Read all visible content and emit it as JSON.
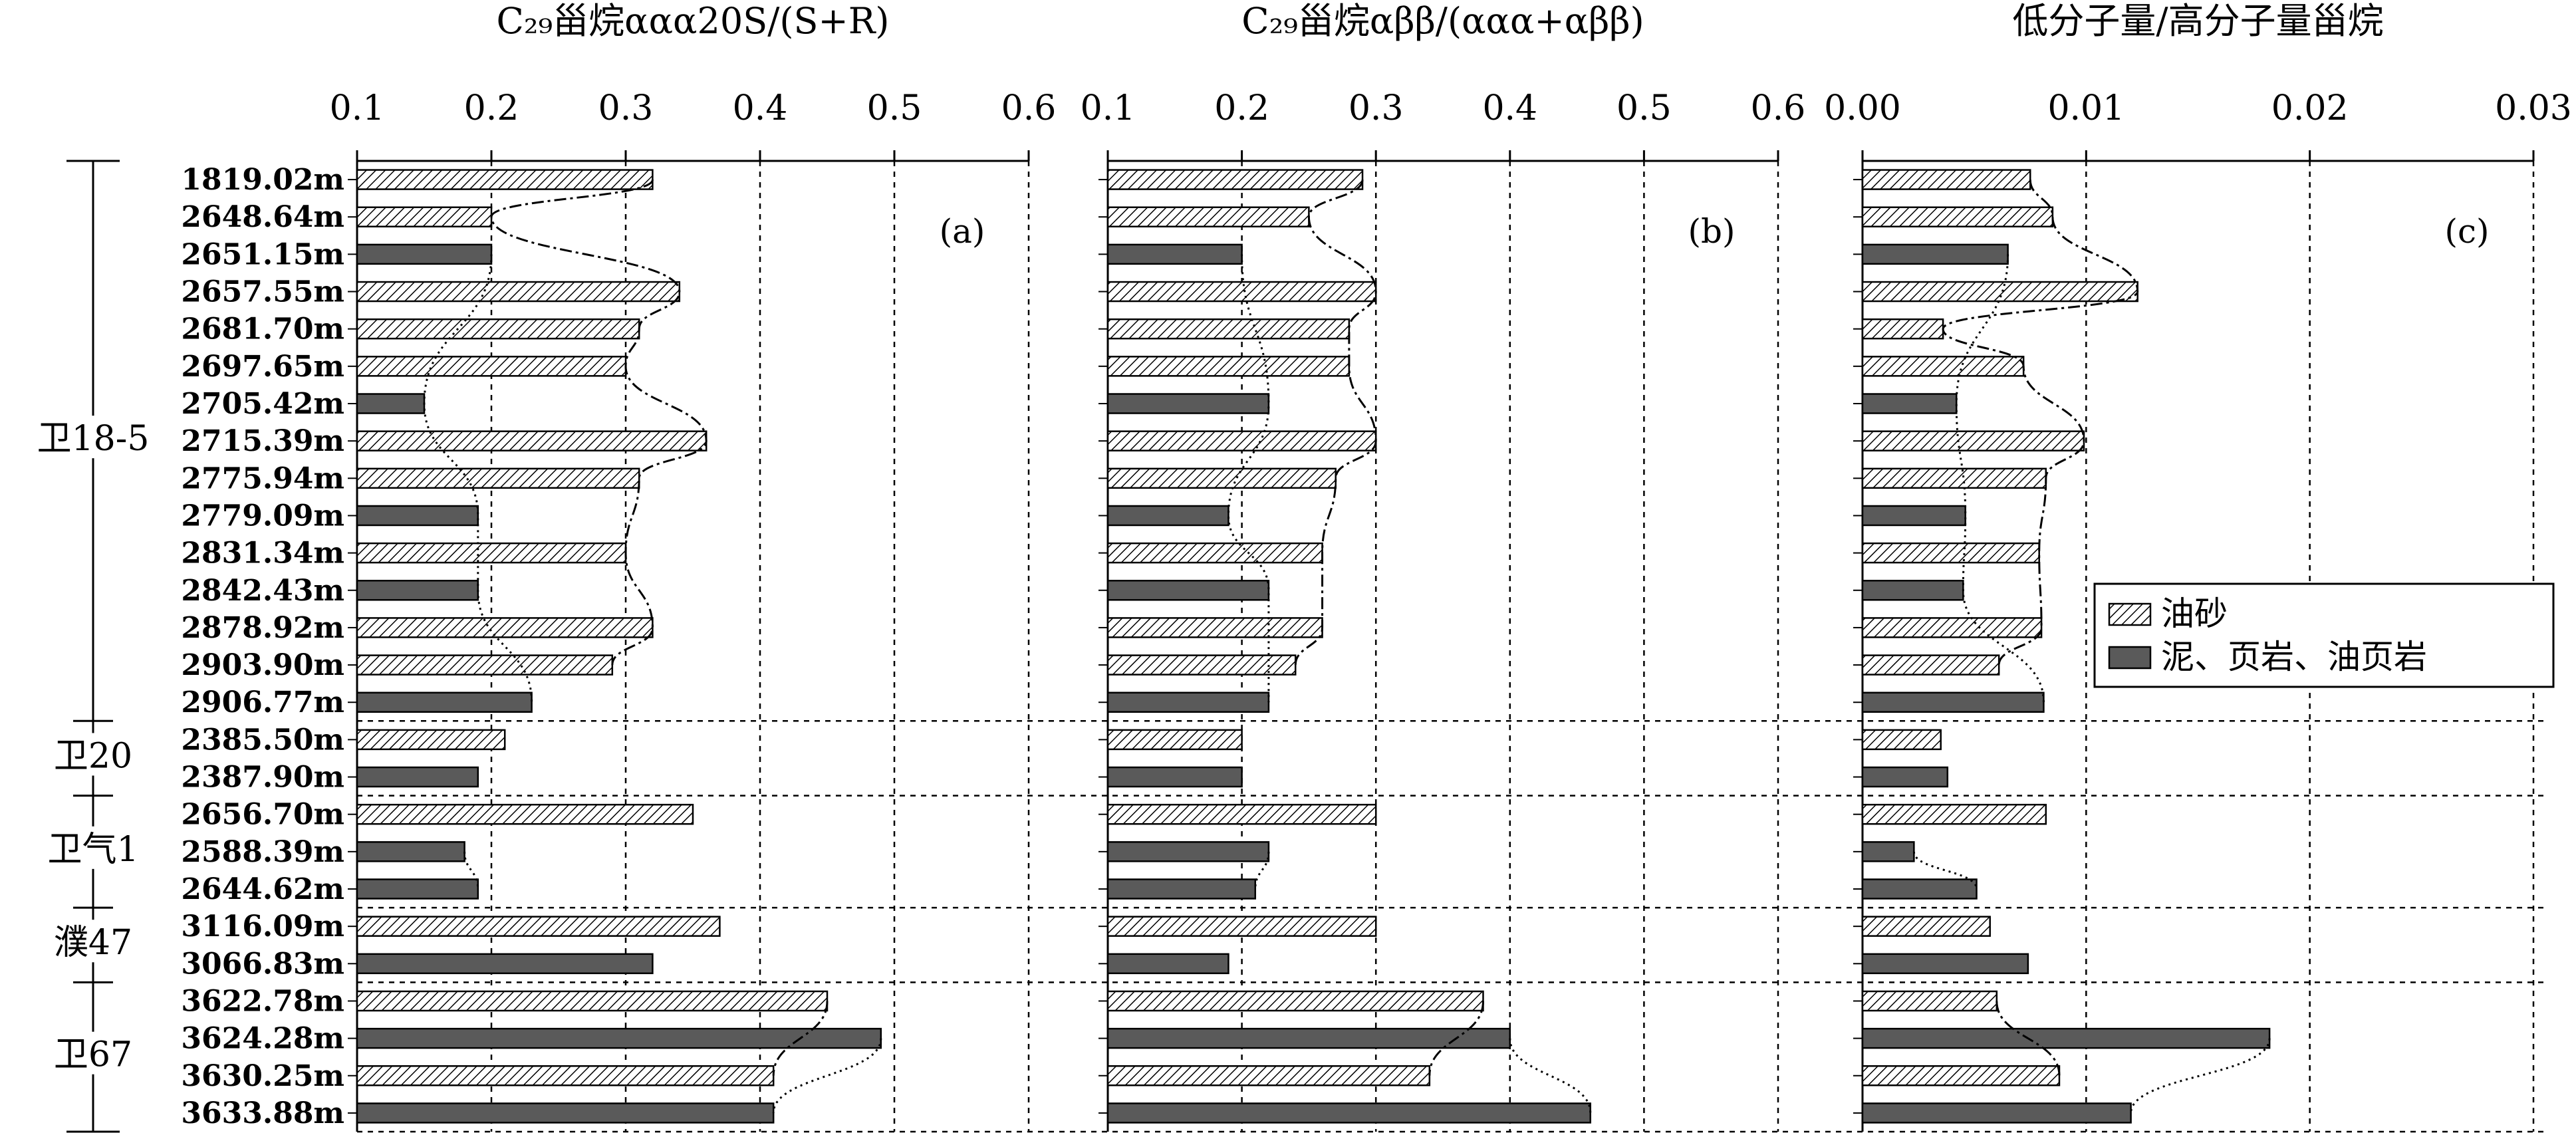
{
  "chart_data": [
    {
      "type": "bar",
      "panel_label": "(a)",
      "title": "C₂₉甾烷ααα20S/(S+R)",
      "xlim": [
        0.1,
        0.6
      ],
      "ticks": [
        "0.1",
        "0.2",
        "0.3",
        "0.4",
        "0.5",
        "0.6"
      ],
      "series_key": "ratio_20s"
    },
    {
      "type": "bar",
      "panel_label": "(b)",
      "title": "C₂₉甾烷αββ/(ααα+αββ)",
      "xlim": [
        0.1,
        0.6
      ],
      "ticks": [
        "0.1",
        "0.2",
        "0.3",
        "0.4",
        "0.5",
        "0.6"
      ],
      "series_key": "ratio_abb"
    },
    {
      "type": "bar",
      "panel_label": "(c)",
      "title": "低分子量/高分子量甾烷",
      "xlim": [
        0.0,
        0.03
      ],
      "ticks": [
        "0.00",
        "0.01",
        "0.02",
        "0.03"
      ],
      "series_key": "low_high_ratio"
    }
  ],
  "samples": [
    {
      "depth": "1819.02m",
      "lith": "oil_sand",
      "ratio_20s": 0.32,
      "ratio_abb": 0.29,
      "low_high_ratio": 0.0075
    },
    {
      "depth": "2648.64m",
      "lith": "oil_sand",
      "ratio_20s": 0.2,
      "ratio_abb": 0.25,
      "low_high_ratio": 0.0085
    },
    {
      "depth": "2651.15m",
      "lith": "mud",
      "ratio_20s": 0.2,
      "ratio_abb": 0.2,
      "low_high_ratio": 0.0065
    },
    {
      "depth": "2657.55m",
      "lith": "oil_sand",
      "ratio_20s": 0.34,
      "ratio_abb": 0.3,
      "low_high_ratio": 0.0123
    },
    {
      "depth": "2681.70m",
      "lith": "oil_sand",
      "ratio_20s": 0.31,
      "ratio_abb": 0.28,
      "low_high_ratio": 0.0036
    },
    {
      "depth": "2697.65m",
      "lith": "oil_sand",
      "ratio_20s": 0.3,
      "ratio_abb": 0.28,
      "low_high_ratio": 0.0072
    },
    {
      "depth": "2705.42m",
      "lith": "mud",
      "ratio_20s": 0.15,
      "ratio_abb": 0.22,
      "low_high_ratio": 0.0042
    },
    {
      "depth": "2715.39m",
      "lith": "oil_sand",
      "ratio_20s": 0.36,
      "ratio_abb": 0.3,
      "low_high_ratio": 0.0099
    },
    {
      "depth": "2775.94m",
      "lith": "oil_sand",
      "ratio_20s": 0.31,
      "ratio_abb": 0.27,
      "low_high_ratio": 0.0082
    },
    {
      "depth": "2779.09m",
      "lith": "mud",
      "ratio_20s": 0.19,
      "ratio_abb": 0.19,
      "low_high_ratio": 0.0046
    },
    {
      "depth": "2831.34m",
      "lith": "oil_sand",
      "ratio_20s": 0.3,
      "ratio_abb": 0.26,
      "low_high_ratio": 0.0079
    },
    {
      "depth": "2842.43m",
      "lith": "mud",
      "ratio_20s": 0.19,
      "ratio_abb": 0.22,
      "low_high_ratio": 0.0045
    },
    {
      "depth": "2878.92m",
      "lith": "oil_sand",
      "ratio_20s": 0.32,
      "ratio_abb": 0.26,
      "low_high_ratio": 0.008
    },
    {
      "depth": "2903.90m",
      "lith": "oil_sand",
      "ratio_20s": 0.29,
      "ratio_abb": 0.24,
      "low_high_ratio": 0.0061
    },
    {
      "depth": "2906.77m",
      "lith": "mud",
      "ratio_20s": 0.23,
      "ratio_abb": 0.22,
      "low_high_ratio": 0.0081
    },
    {
      "depth": "2385.50m",
      "lith": "oil_sand",
      "ratio_20s": 0.21,
      "ratio_abb": 0.2,
      "low_high_ratio": 0.0035
    },
    {
      "depth": "2387.90m",
      "lith": "mud",
      "ratio_20s": 0.19,
      "ratio_abb": 0.2,
      "low_high_ratio": 0.0038
    },
    {
      "depth": "2656.70m",
      "lith": "oil_sand",
      "ratio_20s": 0.35,
      "ratio_abb": 0.3,
      "low_high_ratio": 0.0082
    },
    {
      "depth": "2588.39m",
      "lith": "mud",
      "ratio_20s": 0.18,
      "ratio_abb": 0.22,
      "low_high_ratio": 0.0023
    },
    {
      "depth": "2644.62m",
      "lith": "mud",
      "ratio_20s": 0.19,
      "ratio_abb": 0.21,
      "low_high_ratio": 0.0051
    },
    {
      "depth": "3116.09m",
      "lith": "oil_sand",
      "ratio_20s": 0.37,
      "ratio_abb": 0.3,
      "low_high_ratio": 0.0057
    },
    {
      "depth": "3066.83m",
      "lith": "mud",
      "ratio_20s": 0.32,
      "ratio_abb": 0.19,
      "low_high_ratio": 0.0074
    },
    {
      "depth": "3622.78m",
      "lith": "oil_sand",
      "ratio_20s": 0.45,
      "ratio_abb": 0.38,
      "low_high_ratio": 0.006
    },
    {
      "depth": "3624.28m",
      "lith": "mud",
      "ratio_20s": 0.49,
      "ratio_abb": 0.4,
      "low_high_ratio": 0.0182
    },
    {
      "depth": "3630.25m",
      "lith": "oil_sand",
      "ratio_20s": 0.41,
      "ratio_abb": 0.34,
      "low_high_ratio": 0.0088
    },
    {
      "depth": "3633.88m",
      "lith": "mud",
      "ratio_20s": 0.41,
      "ratio_abb": 0.46,
      "low_high_ratio": 0.012
    }
  ],
  "wells": [
    {
      "name": "卫18-5",
      "start": 0,
      "end": 14
    },
    {
      "name": "卫20",
      "start": 15,
      "end": 16
    },
    {
      "name": "卫气1",
      "start": 17,
      "end": 19
    },
    {
      "name": "濮47",
      "start": 20,
      "end": 21
    },
    {
      "name": "卫67",
      "start": 22,
      "end": 25
    }
  ],
  "legend": {
    "oil_sand": "油砂",
    "mud": "泥、页岩、油页岩"
  }
}
